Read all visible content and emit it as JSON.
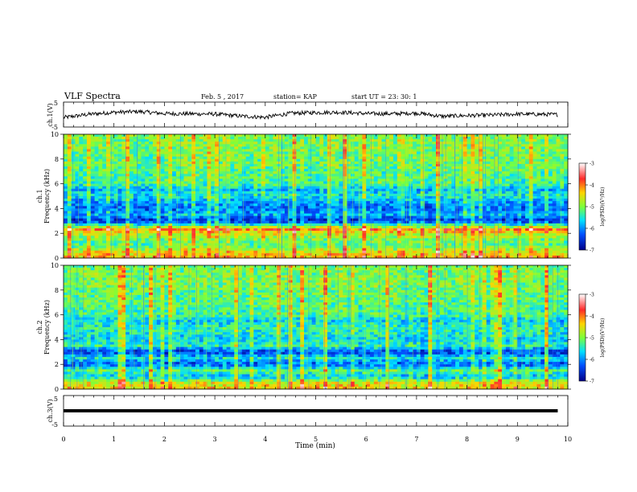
{
  "header": {
    "title": "VLF Spectra",
    "date": "Feb. 5 , 2017",
    "station": "station= KAP",
    "start": "start  UT =   23: 30: 1"
  },
  "colorbar": {
    "label": "log(PSD)(V²/Hz)",
    "ticks": [
      "-3",
      "-4",
      "-5",
      "-6",
      "-7"
    ],
    "colors": [
      "#ffffff",
      "#ff2a2a",
      "#ffd400",
      "#7cff3a",
      "#00e0ff",
      "#0050ff",
      "#000088"
    ]
  },
  "chart_data": [
    {
      "type": "line",
      "panel": "ch1-waveform",
      "ylabel": "ch.1(V)",
      "ylim": [
        -5,
        5
      ],
      "yticks": [
        "5",
        "-5"
      ],
      "x": [
        0,
        0.5,
        1,
        1.5,
        2,
        2.5,
        3,
        3.5,
        4,
        4.5,
        5,
        5.5,
        6,
        6.5,
        7,
        7.5,
        8,
        8.5,
        9,
        9.5,
        9.8
      ],
      "y": [
        -1.2,
        0.1,
        0.9,
        1.2,
        0.4,
        0.3,
        0.2,
        -0.6,
        -1.1,
        0.5,
        0.8,
        0.9,
        0.4,
        0.3,
        0.6,
        -0.7,
        -0.4,
        -0.2,
        0.2,
        0.1,
        0.0
      ]
    },
    {
      "type": "heatmap",
      "panel": "ch1-spectrogram",
      "ylabel": "ch.1\nFrequency (kHz)",
      "ylim": [
        0,
        10
      ],
      "yticks": [
        "0",
        "2",
        "4",
        "6",
        "8",
        "10"
      ],
      "xlim": [
        0,
        10
      ],
      "scale": "log(PSD)(V²/Hz)",
      "zlim": [
        -7,
        -3
      ],
      "profile_khz": [
        0,
        0.5,
        1,
        1.5,
        2,
        2.3,
        2.5,
        3,
        3.2,
        3.5,
        4,
        4.5,
        5,
        5.5,
        6,
        7,
        8,
        9,
        10
      ],
      "profile_logpsd": [
        -4.2,
        -4.5,
        -5.2,
        -5.0,
        -4.6,
        -4.0,
        -4.8,
        -6.6,
        -6.3,
        -5.9,
        -6.2,
        -6.0,
        -5.5,
        -5.8,
        -5.3,
        -5.2,
        -5.1,
        -5.0,
        -5.0
      ]
    },
    {
      "type": "heatmap",
      "panel": "ch2-spectrogram",
      "ylabel": "ch.2\nFrequency (kHz)",
      "ylim": [
        0,
        10
      ],
      "yticks": [
        "0",
        "2",
        "4",
        "6",
        "8",
        "10"
      ],
      "xlim": [
        0,
        10
      ],
      "scale": "log(PSD)(V²/Hz)",
      "zlim": [
        -7,
        -3
      ],
      "profile_khz": [
        0,
        0.5,
        1,
        1.5,
        2,
        2.5,
        3,
        3.5,
        4,
        4.5,
        5,
        5.5,
        6,
        7,
        8,
        9,
        10
      ],
      "profile_logpsd": [
        -4.3,
        -4.6,
        -5.8,
        -5.2,
        -6.3,
        -5.6,
        -6.5,
        -5.4,
        -5.7,
        -5.5,
        -5.4,
        -5.7,
        -5.3,
        -5.2,
        -5.1,
        -5.0,
        -5.1
      ]
    },
    {
      "type": "line",
      "panel": "ch3-waveform",
      "ylabel": "ch.3(V)",
      "ylim": [
        -5,
        5
      ],
      "yticks": [
        "5",
        "-5"
      ],
      "x": [
        0,
        9.8
      ],
      "y": [
        0,
        0
      ]
    }
  ],
  "xaxis": {
    "label": "Time  (min)",
    "ticks": [
      "0",
      "1",
      "2",
      "3",
      "4",
      "5",
      "6",
      "7",
      "8",
      "9",
      "10"
    ],
    "xlim": [
      0,
      10
    ]
  }
}
